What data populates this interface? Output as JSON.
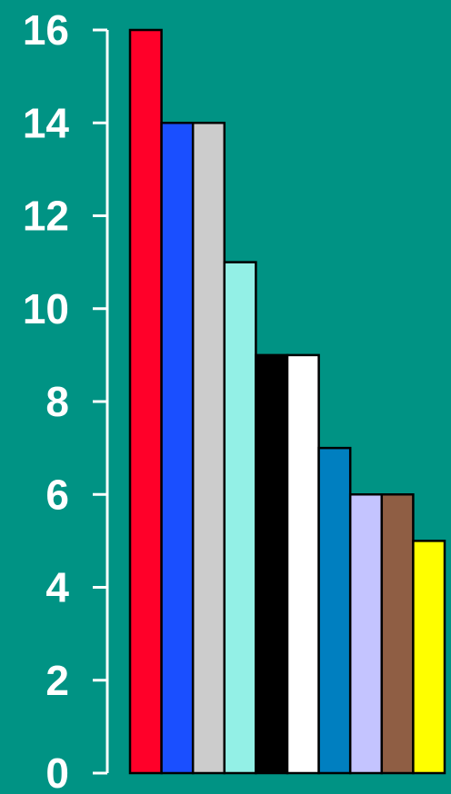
{
  "chart_data": {
    "type": "bar",
    "title": "",
    "xlabel": "",
    "ylabel": "",
    "ylim": [
      0,
      16
    ],
    "y_ticks": [
      0,
      2,
      4,
      6,
      8,
      10,
      12,
      14,
      16
    ],
    "y_tick_labels": [
      "0",
      "2",
      "4",
      "6",
      "8",
      "10",
      "12",
      "14",
      "16"
    ],
    "grid": false,
    "legend": "none",
    "values": [
      16,
      14,
      14,
      11,
      9,
      9,
      7,
      6,
      6,
      5
    ],
    "bar_colors": [
      "#ff0029",
      "#1a4fff",
      "#cccccc",
      "#93f0e6",
      "#000000",
      "#ffffff",
      "#007fc0",
      "#c4c4ff",
      "#8f5e44",
      "#ffff00"
    ]
  },
  "colors": {
    "background": "#009384",
    "axis": "#ffffff",
    "bar_outline": "#000000",
    "tick_text": "#ffffff"
  }
}
